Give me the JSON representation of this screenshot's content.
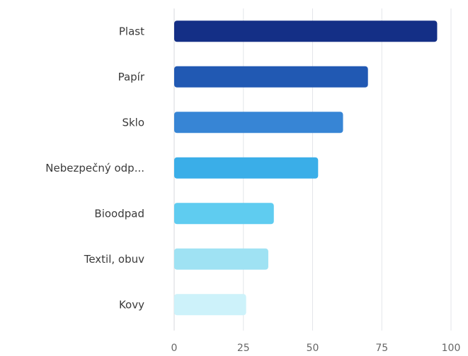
{
  "chart_data": {
    "type": "bar",
    "orientation": "horizontal",
    "categories": [
      "Plast",
      "Papír",
      "Sklo",
      "Nebezpečný odp...",
      "Bioodpad",
      "Textil, obuv",
      "Kovy"
    ],
    "values": [
      95,
      70,
      61,
      52,
      36,
      34,
      26
    ],
    "colors": [
      "#142f86",
      "#2159b3",
      "#3785d5",
      "#3aaee8",
      "#5fccf0",
      "#9fe2f3",
      "#cdf2fa"
    ],
    "xlim": [
      0,
      100
    ],
    "xticks": [
      0,
      25,
      50,
      75,
      100
    ],
    "grid": true,
    "title": "",
    "xlabel": "",
    "ylabel": ""
  }
}
